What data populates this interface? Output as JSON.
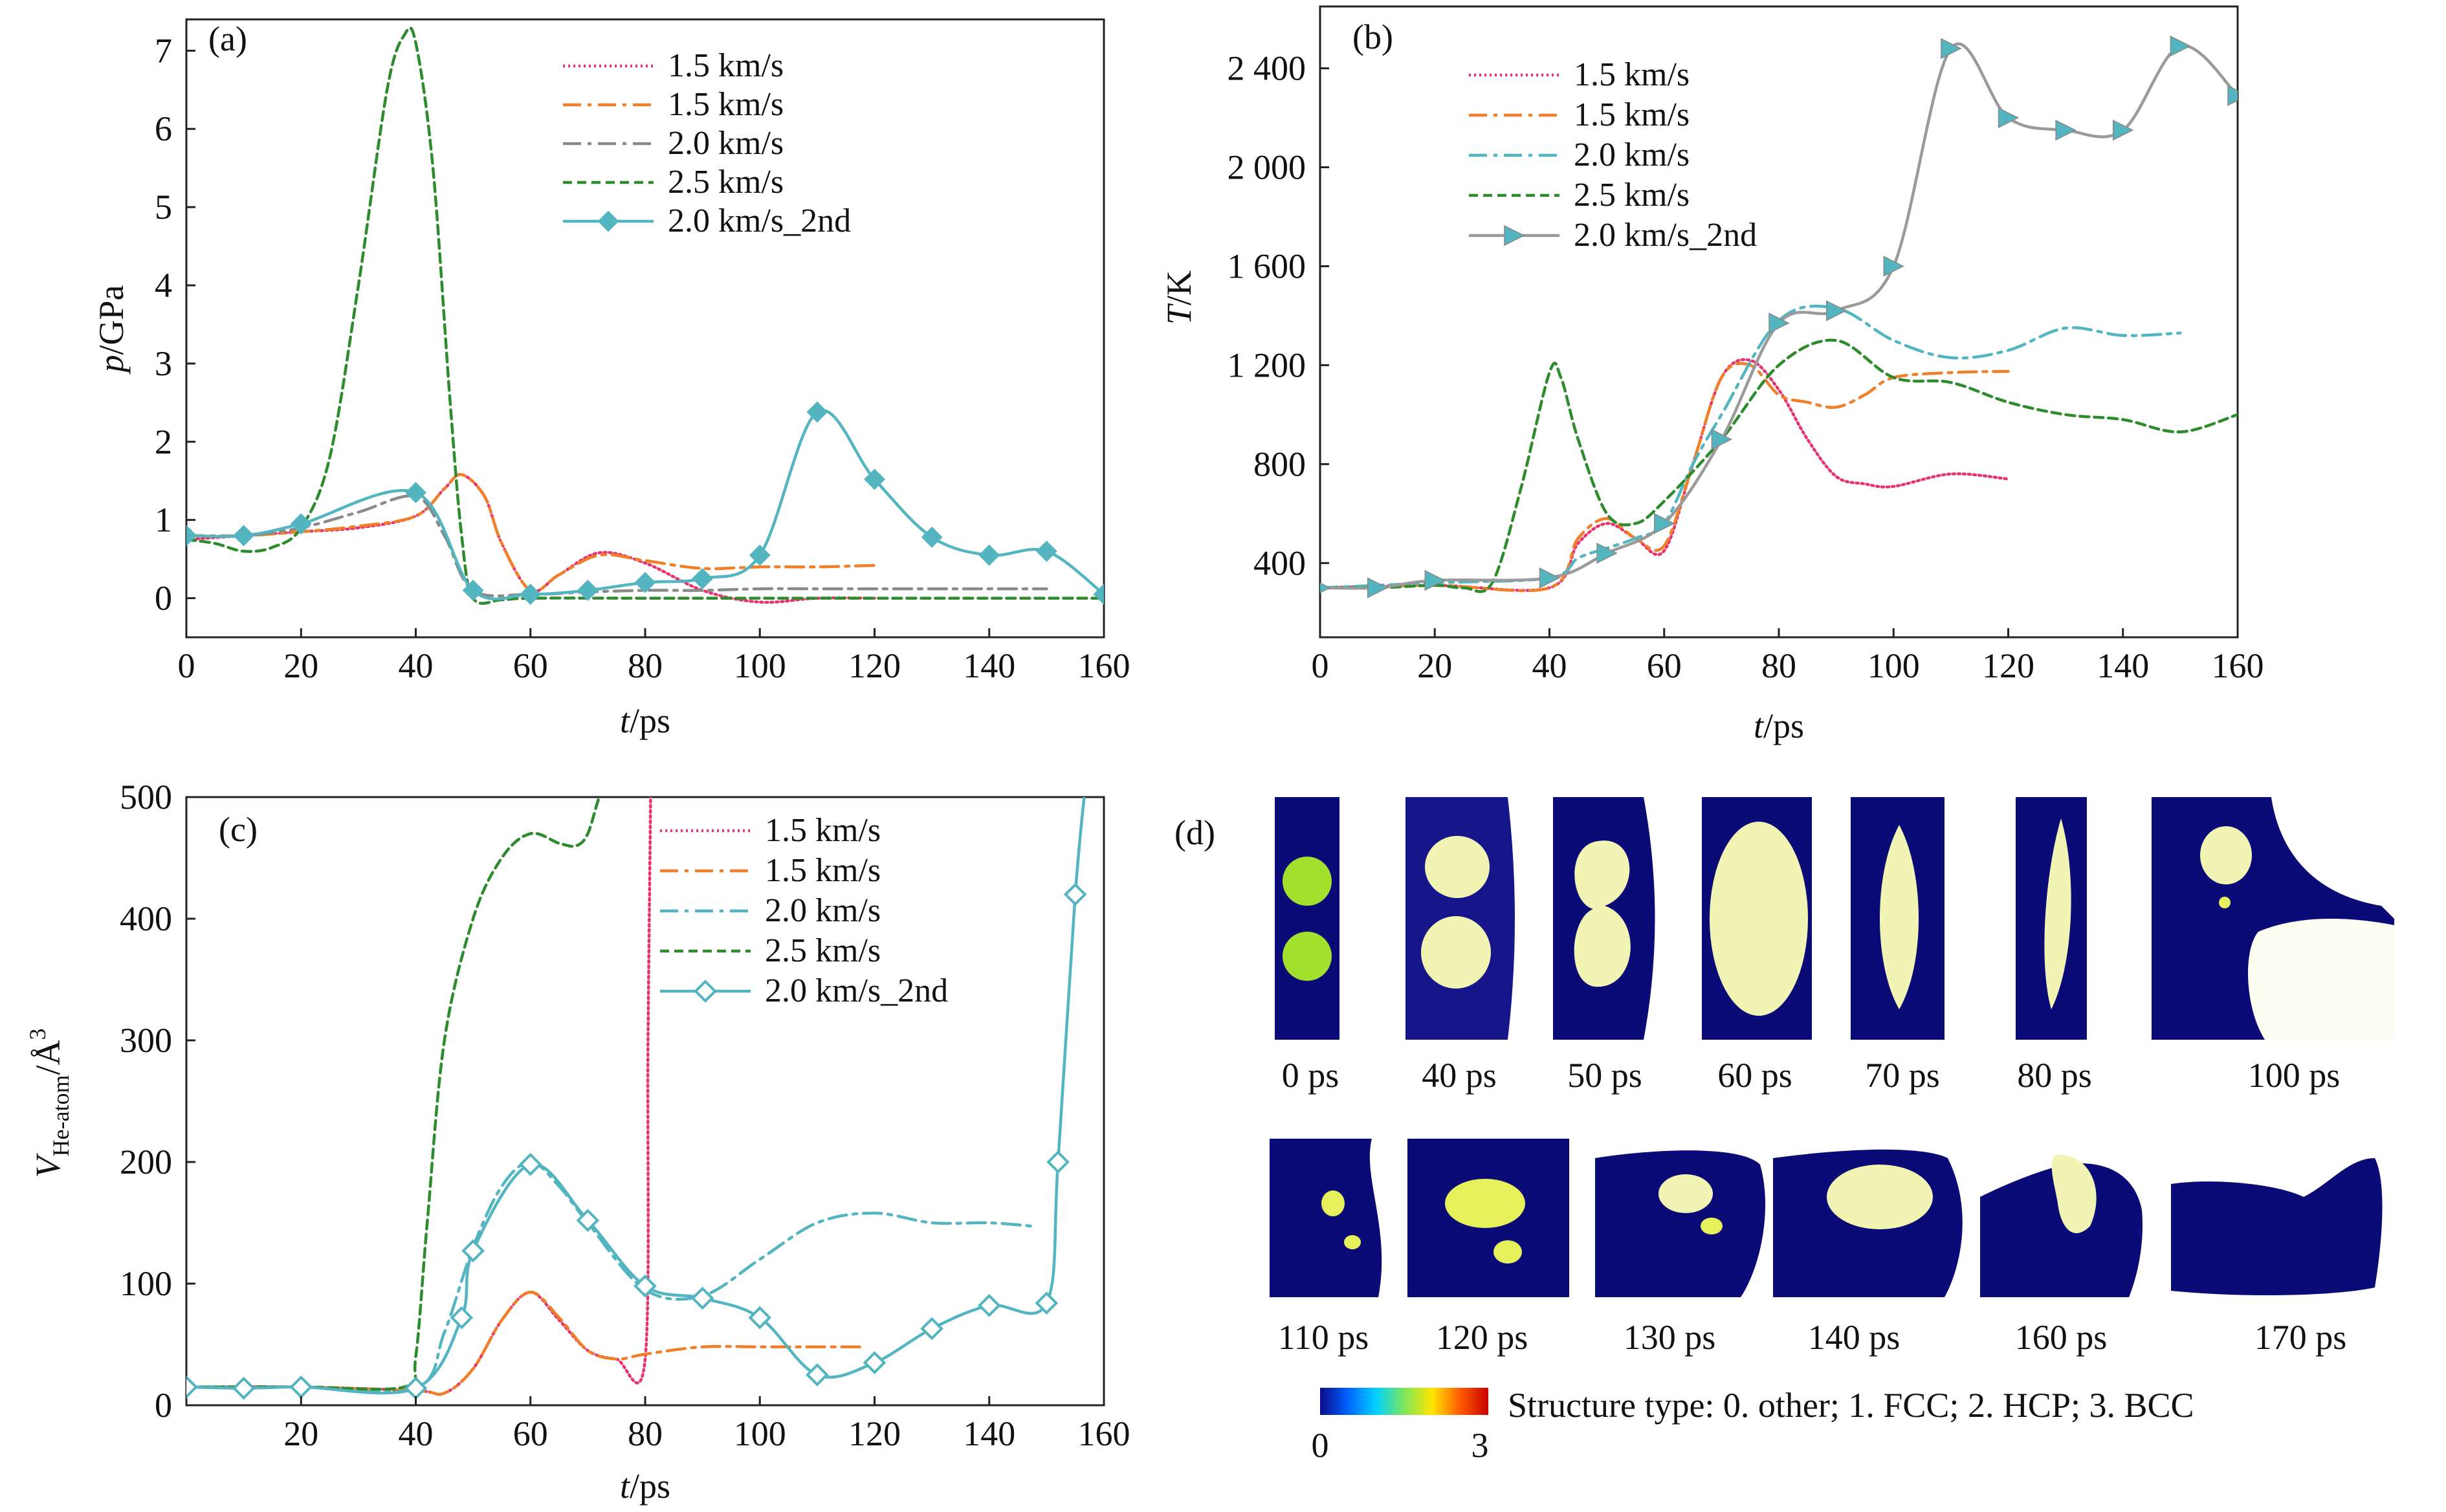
{
  "figure": {
    "colorbar": {
      "caption": "Structure type: 0. other; 1. FCC; 2. HCP; 3. BCC",
      "min_label": "0",
      "max_label": "3",
      "colors": [
        "#0a0a8c",
        "#0064ff",
        "#00d2ff",
        "#7de65a",
        "#ffe600",
        "#ff5a00",
        "#c80000"
      ]
    }
  },
  "chart_data": [
    {
      "panel": "a",
      "type": "line",
      "title": "(a)",
      "xlabel": "t/ps",
      "ylabel": "p/GPa",
      "xlim": [
        0,
        160
      ],
      "ylim": [
        -0.5,
        7.4
      ],
      "xticks": [
        0,
        20,
        40,
        60,
        80,
        100,
        120,
        140,
        160
      ],
      "yticks": [
        0,
        1,
        2,
        3,
        4,
        5,
        6,
        7
      ],
      "series": [
        {
          "name": "1.5 km/s",
          "color": "#e8336e",
          "dash": "3,5",
          "marker": "none",
          "x": [
            0,
            10,
            20,
            30,
            40,
            45,
            48,
            52,
            55,
            60,
            65,
            72,
            80,
            90,
            100,
            110,
            120
          ],
          "y": [
            0.75,
            0.8,
            0.85,
            0.9,
            1.05,
            1.4,
            1.58,
            1.3,
            0.7,
            0.1,
            0.3,
            0.58,
            0.45,
            0.1,
            -0.05,
            0.0,
            0.0
          ]
        },
        {
          "name": "1.5 km/s",
          "color": "#f07f2a",
          "dash": "28,10,6,10",
          "marker": "none",
          "x": [
            0,
            10,
            20,
            30,
            40,
            45,
            48,
            52,
            55,
            60,
            65,
            72,
            80,
            90,
            100,
            110,
            120
          ],
          "y": [
            0.8,
            0.8,
            0.85,
            0.92,
            1.05,
            1.4,
            1.58,
            1.3,
            0.7,
            0.1,
            0.3,
            0.55,
            0.48,
            0.38,
            0.4,
            0.4,
            0.42
          ]
        },
        {
          "name": "2.0 km/s",
          "color": "#8a8a8a",
          "dash": "28,10,6,10",
          "marker": "none",
          "x": [
            0,
            10,
            20,
            30,
            40,
            45,
            50,
            60,
            70,
            80,
            90,
            100,
            110,
            120,
            130,
            140,
            150
          ],
          "y": [
            0.8,
            0.8,
            0.9,
            1.1,
            1.3,
            0.8,
            0.1,
            0.05,
            0.08,
            0.1,
            0.1,
            0.12,
            0.12,
            0.12,
            0.12,
            0.12,
            0.12
          ]
        },
        {
          "name": "2.5 km/s",
          "color": "#2e8b2e",
          "dash": "14,8",
          "marker": "none",
          "x": [
            0,
            5,
            10,
            15,
            20,
            25,
            30,
            35,
            38,
            40,
            43,
            46,
            48,
            50,
            55,
            60,
            80,
            100,
            120,
            140,
            160
          ],
          "y": [
            0.75,
            0.7,
            0.6,
            0.65,
            0.9,
            1.8,
            4.0,
            6.5,
            7.2,
            7.1,
            5.5,
            2.5,
            0.8,
            0.0,
            -0.02,
            0.0,
            0.0,
            0.0,
            0.0,
            0.0,
            0.0
          ]
        },
        {
          "name": "2.0 km/s_2nd",
          "color": "#52b5bf",
          "dash": "none",
          "marker": "diamond",
          "x": [
            0,
            10,
            20,
            40,
            50,
            60,
            70,
            80,
            90,
            100,
            110,
            120,
            130,
            140,
            150,
            160
          ],
          "y": [
            0.8,
            0.8,
            0.95,
            1.35,
            0.1,
            0.05,
            0.1,
            0.2,
            0.25,
            0.55,
            2.38,
            1.52,
            0.78,
            0.55,
            0.6,
            0.05
          ]
        }
      ]
    },
    {
      "panel": "b",
      "type": "line",
      "title": "(b)",
      "xlabel": "t/ps",
      "ylabel": "T/K",
      "xlim": [
        0,
        160
      ],
      "ylim": [
        100,
        2650
      ],
      "xticks": [
        0,
        20,
        40,
        60,
        80,
        100,
        120,
        140,
        160
      ],
      "yticks": [
        400,
        800,
        1200,
        1600,
        2000,
        2400
      ],
      "ytick_labels": [
        "400",
        "800",
        "1 200",
        "1 600",
        "2 000",
        "2 400"
      ],
      "series": [
        {
          "name": "1.5 km/s",
          "color": "#e8336e",
          "dash": "3,5",
          "marker": "none",
          "x": [
            0,
            20,
            40,
            45,
            50,
            55,
            60,
            65,
            70,
            75,
            80,
            85,
            90,
            95,
            100,
            110,
            120
          ],
          "y": [
            300,
            310,
            300,
            480,
            560,
            500,
            450,
            800,
            1150,
            1220,
            1100,
            900,
            750,
            720,
            710,
            760,
            740
          ]
        },
        {
          "name": "1.5 km/s",
          "color": "#f07f2a",
          "dash": "28,10,6,10",
          "marker": "none",
          "x": [
            0,
            20,
            40,
            45,
            50,
            55,
            60,
            65,
            70,
            75,
            80,
            85,
            90,
            95,
            100,
            110,
            120
          ],
          "y": [
            300,
            310,
            300,
            500,
            580,
            500,
            470,
            800,
            1150,
            1200,
            1080,
            1050,
            1030,
            1080,
            1150,
            1170,
            1175
          ]
        },
        {
          "name": "2.0 km/s",
          "color": "#52b5bf",
          "dash": "28,10,6,10",
          "marker": "none",
          "x": [
            0,
            20,
            40,
            45,
            50,
            55,
            60,
            65,
            70,
            80,
            90,
            100,
            110,
            120,
            130,
            140,
            150
          ],
          "y": [
            300,
            320,
            340,
            420,
            460,
            500,
            560,
            800,
            1000,
            1380,
            1430,
            1300,
            1230,
            1260,
            1350,
            1320,
            1330
          ]
        },
        {
          "name": "2.5 km/s",
          "color": "#2e8b2e",
          "dash": "14,8",
          "marker": "none",
          "x": [
            0,
            10,
            20,
            25,
            30,
            35,
            40,
            42,
            45,
            50,
            55,
            60,
            70,
            80,
            90,
            100,
            110,
            120,
            130,
            140,
            150,
            160
          ],
          "y": [
            300,
            300,
            310,
            300,
            320,
            700,
            1170,
            1150,
            900,
            600,
            560,
            650,
            900,
            1200,
            1300,
            1150,
            1130,
            1050,
            1000,
            980,
            930,
            1000
          ]
        },
        {
          "name": "2.0 km/s_2nd",
          "color": "#52b5bf",
          "line_color": "#9a9a9a",
          "dash": "none",
          "marker": "triangle",
          "x": [
            0,
            10,
            20,
            40,
            50,
            60,
            70,
            80,
            90,
            100,
            110,
            120,
            130,
            140,
            150,
            160
          ],
          "y": [
            300,
            300,
            330,
            340,
            440,
            560,
            900,
            1370,
            1420,
            1600,
            2480,
            2200,
            2150,
            2150,
            2490,
            2290
          ]
        }
      ]
    },
    {
      "panel": "c",
      "type": "line",
      "title": "(c)",
      "xlabel": "t/ps",
      "ylabel": "V_He-atom/Å³",
      "ylabel_main": "V",
      "ylabel_sub": "He-atom",
      "ylabel_unit": "/Å",
      "ylabel_sup": "3",
      "xlim": [
        0,
        160
      ],
      "ylim": [
        0,
        500
      ],
      "xticks": [
        20,
        40,
        60,
        80,
        100,
        120,
        140,
        160
      ],
      "yticks": [
        0,
        100,
        200,
        300,
        400,
        500
      ],
      "series": [
        {
          "name": "1.5 km/s",
          "color": "#e8336e",
          "dash": "3,5",
          "marker": "none",
          "x": [
            0,
            20,
            40,
            45,
            50,
            55,
            60,
            65,
            70,
            75,
            80,
            80.5,
            81
          ],
          "y": [
            15,
            15,
            12,
            10,
            30,
            70,
            93,
            70,
            45,
            38,
            38,
            300,
            520
          ]
        },
        {
          "name": "1.5 km/s",
          "color": "#f07f2a",
          "dash": "28,10,6,10",
          "marker": "none",
          "x": [
            0,
            20,
            40,
            45,
            50,
            55,
            60,
            65,
            70,
            75,
            80,
            90,
            100,
            110,
            118
          ],
          "y": [
            15,
            15,
            12,
            10,
            30,
            70,
            93,
            72,
            45,
            38,
            42,
            48,
            48,
            48,
            48
          ]
        },
        {
          "name": "2.0 km/s",
          "color": "#52b5bf",
          "dash": "28,10,6,10",
          "marker": "none",
          "x": [
            0,
            20,
            40,
            45,
            50,
            55,
            60,
            65,
            70,
            80,
            90,
            100,
            110,
            120,
            130,
            140,
            148
          ],
          "y": [
            15,
            15,
            14,
            60,
            130,
            180,
            200,
            180,
            150,
            95,
            90,
            120,
            150,
            158,
            150,
            150,
            147
          ]
        },
        {
          "name": "2.5 km/s",
          "color": "#2e8b2e",
          "dash": "14,8",
          "marker": "none",
          "x": [
            0,
            20,
            38,
            40,
            42,
            45,
            50,
            55,
            60,
            65,
            68,
            70,
            72,
            74
          ],
          "y": [
            15,
            15,
            15,
            40,
            150,
            300,
            400,
            450,
            470,
            462,
            460,
            470,
            500,
            520
          ]
        },
        {
          "name": "2.0 km/s_2nd",
          "color": "#52b5bf",
          "dash": "none",
          "marker": "open-diamond",
          "x": [
            0,
            10,
            20,
            40,
            48,
            50,
            60,
            70,
            80,
            90,
            100,
            110,
            120,
            130,
            140,
            150,
            152,
            155,
            157
          ],
          "y": [
            15,
            14,
            15,
            14,
            72,
            127,
            198,
            152,
            98,
            88,
            72,
            25,
            35,
            63,
            82,
            84,
            200,
            420,
            520
          ]
        }
      ]
    }
  ],
  "panel_d": {
    "label": "(d)",
    "snapshots": [
      {
        "label": "0 ps"
      },
      {
        "label": "40 ps"
      },
      {
        "label": "50 ps"
      },
      {
        "label": "60 ps"
      },
      {
        "label": "70 ps"
      },
      {
        "label": "80 ps"
      },
      {
        "label": "100 ps"
      },
      {
        "label": "110 ps"
      },
      {
        "label": "120 ps"
      },
      {
        "label": "130 ps"
      },
      {
        "label": "140 ps"
      },
      {
        "label": "160 ps"
      },
      {
        "label": "170 ps"
      }
    ]
  }
}
